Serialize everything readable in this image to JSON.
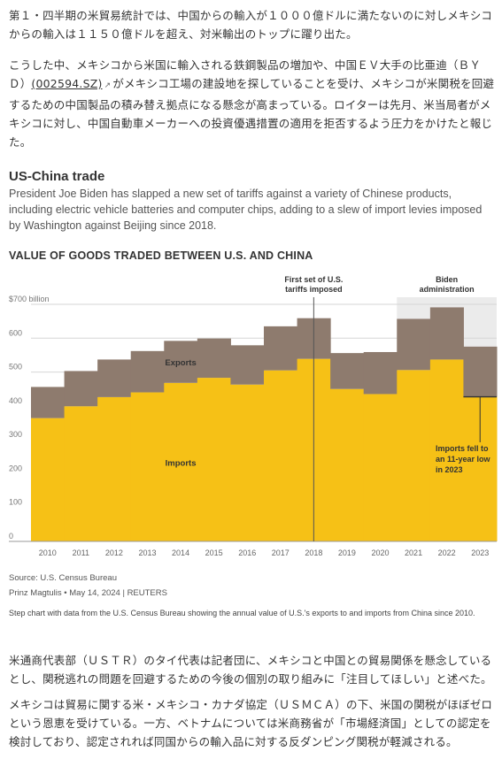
{
  "article": {
    "para1": "第１・四半期の米貿易統計では、中国からの輸入が１０００億ドルに満たないのに対しメキシコからの輸入は１１５０億ドルを超え、対米輸出のトップに躍り出た。",
    "para2_a": "こうした中、メキシコから米国に輸入される鉄鋼製品の増加や、中国ＥＶ大手の比亜迪（ＢＹＤ）",
    "para2_link": "(002594.SZ)",
    "para2_b": "がメキシコ工場の建設地を探していることを受け、メキシコが米関税を回避するための中国製品の積み替え拠点になる懸念が高まっている。ロイターは先月、米当局者がメキシコに対し、中国自動車メーカーへの投資優遇措置の適用を拒否するよう圧力をかけたと報じた。",
    "para3": "米通商代表部（ＵＳＴＲ）のタイ代表は記者団に、メキシコと中国との貿易関係を懸念しているとし、関税逃れの問題を回避するための今後の個別の取り組みに「注目してほしい」と述べた。",
    "para4": "メキシコは貿易に関する米・メキシコ・カナダ協定（ＵＳＭＣＡ）の下、米国の関税がほぼゼロという恩恵を受けている。一方、ベトナムについては米商務省が「市場経済国」としての認定を検討しており、認定されれば同国からの輸入品に対する反ダンピング関税が軽減される。"
  },
  "graphic": {
    "section_title": "US-China trade",
    "section_desc": "President Joe Biden has slapped a new set of tariffs against a variety of Chinese products, including electric vehicle batteries and computer chips, adding to a slew of import levies imposed by Washington against Beijing since 2018.",
    "chart_title": "VALUE OF GOODS TRADED BETWEEN U.S. AND CHINA",
    "source": "Source: U.S. Census Bureau",
    "credit": "Prinz Magtulis • May 14, 2024 | REUTERS",
    "note": "Step chart with data from the U.S. Census Bureau showing the annual value of U.S.'s exports to and imports from China since 2010."
  },
  "colors": {
    "imports": "#F6C116",
    "exports": "#8E7B6E",
    "shade": "#EBEBEB",
    "grid": "#d6d6d6"
  },
  "chart_data": {
    "type": "area",
    "style": "step",
    "title": "VALUE OF GOODS TRADED BETWEEN U.S. AND CHINA",
    "x": [
      "2010",
      "2011",
      "2012",
      "2013",
      "2014",
      "2015",
      "2016",
      "2017",
      "2018",
      "2019",
      "2020",
      "2021",
      "2022",
      "2023"
    ],
    "series": [
      {
        "name": "Imports",
        "values": [
          364,
          399,
          426,
          440,
          468,
          483,
          463,
          505,
          539,
          450,
          435,
          506,
          537,
          427
        ]
      },
      {
        "name": "Exports",
        "values": [
          92,
          104,
          111,
          122,
          124,
          116,
          116,
          130,
          120,
          106,
          124,
          151,
          154,
          148
        ]
      }
    ],
    "y_unit_label": "$700 billion",
    "yticks": [
      0,
      100,
      200,
      300,
      400,
      500,
      600,
      700
    ],
    "ytick_labels": [
      "0",
      "100",
      "200",
      "300",
      "400",
      "500",
      "600",
      "$700 billion"
    ],
    "ylim": [
      0,
      700
    ],
    "grid": true,
    "annotations": [
      {
        "text": "First set of U.S.\ntariffs imposed",
        "x": "2018"
      },
      {
        "text": "Biden\nadministration",
        "x_start": "2021",
        "x_end": "2023"
      },
      {
        "text": "Imports fell to\nan 11-year low\nin 2023",
        "x": "2023"
      }
    ]
  }
}
